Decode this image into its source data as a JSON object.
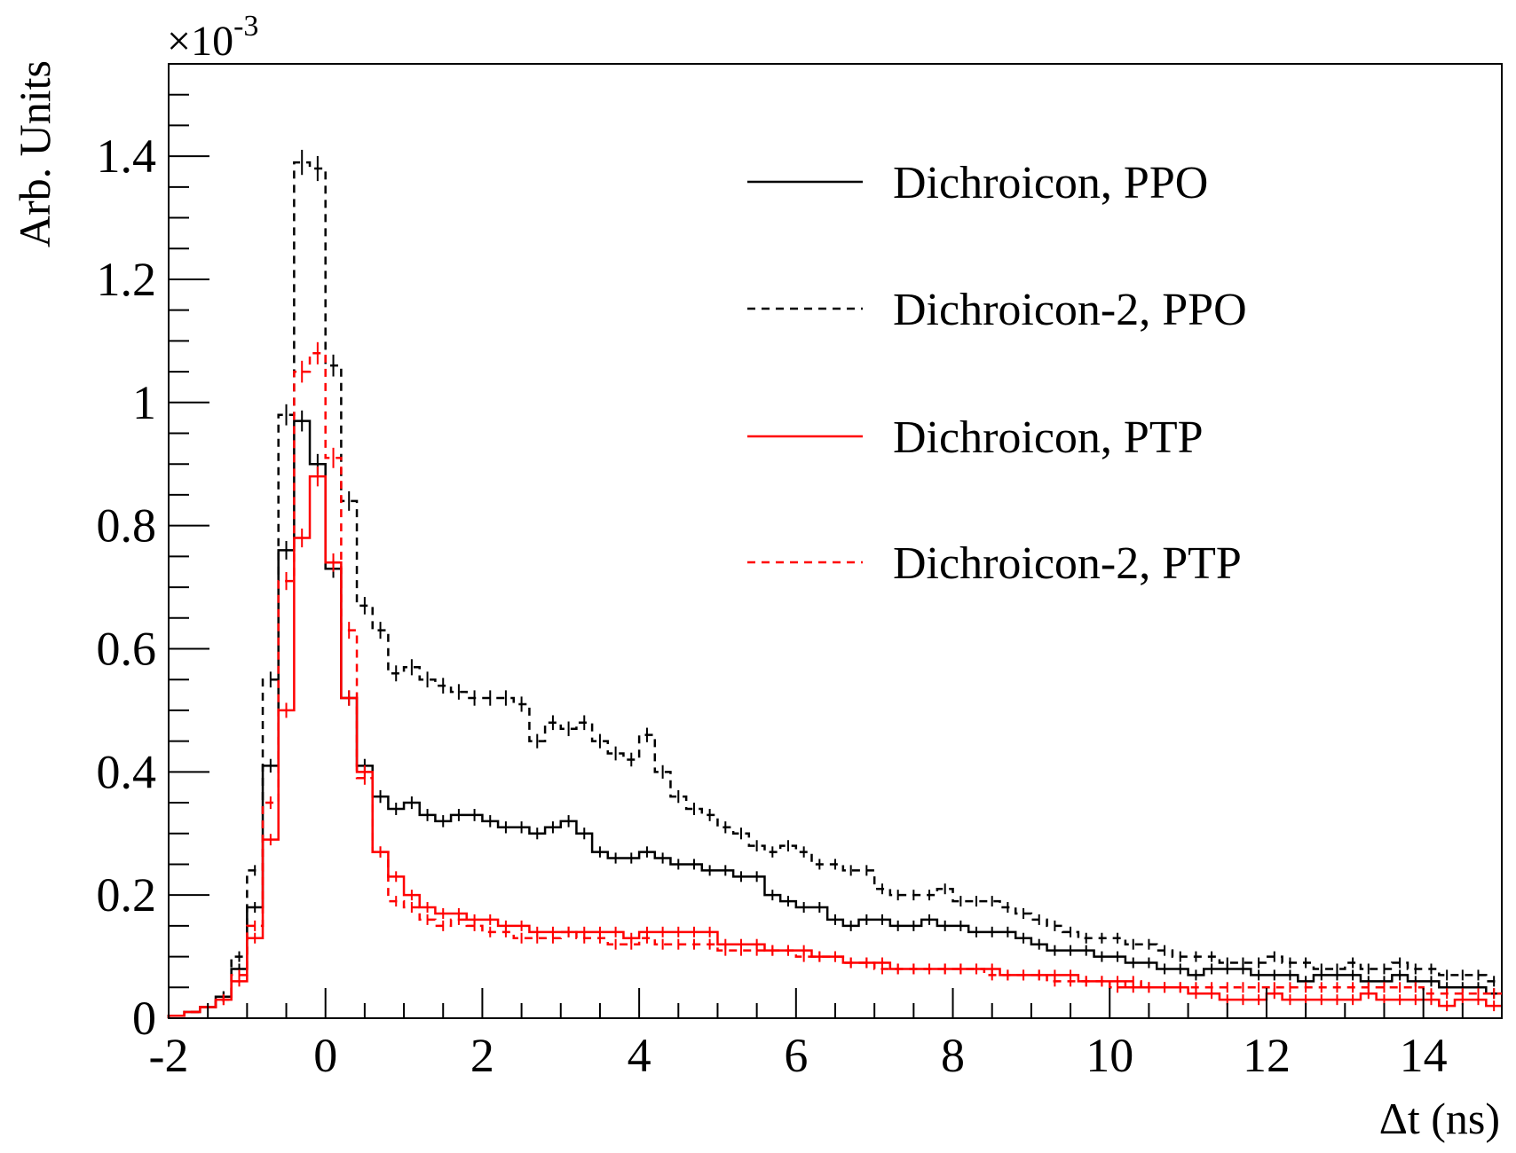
{
  "chart_data": {
    "type": "histogram",
    "title": "",
    "xlabel": "Δt (ns)",
    "ylabel": "Arb. Units",
    "y_multiplier": "×10",
    "y_multiplier_exp": "-3",
    "xlim": [
      -2,
      15
    ],
    "ylim": [
      0,
      1.55
    ],
    "xticks": [
      -2,
      0,
      2,
      4,
      6,
      8,
      10,
      12,
      14
    ],
    "yticks": [
      0,
      0.2,
      0.4,
      0.6,
      0.8,
      1,
      1.2,
      1.4
    ],
    "ytick_labels": [
      "0",
      "0.2",
      "0.4",
      "0.6",
      "0.8",
      "1",
      "1.2",
      "1.4"
    ],
    "xtick_labels": [
      "-2",
      "0",
      "2",
      "4",
      "6",
      "8",
      "10",
      "12",
      "14"
    ],
    "legend_position": "top-right",
    "grid": false,
    "bin_width": 0.2,
    "bin_start": -2,
    "series": [
      {
        "name": "Dichroicon, PPO",
        "color": "#000000",
        "style": "solid",
        "values": [
          0.004,
          0.01,
          0.018,
          0.035,
          0.08,
          0.18,
          0.41,
          0.76,
          0.97,
          0.9,
          0.73,
          0.52,
          0.41,
          0.36,
          0.34,
          0.35,
          0.33,
          0.32,
          0.33,
          0.33,
          0.32,
          0.31,
          0.31,
          0.3,
          0.31,
          0.32,
          0.3,
          0.27,
          0.26,
          0.26,
          0.27,
          0.26,
          0.25,
          0.25,
          0.24,
          0.24,
          0.23,
          0.23,
          0.2,
          0.19,
          0.18,
          0.18,
          0.16,
          0.15,
          0.16,
          0.16,
          0.15,
          0.15,
          0.16,
          0.15,
          0.15,
          0.14,
          0.14,
          0.14,
          0.13,
          0.12,
          0.11,
          0.11,
          0.11,
          0.1,
          0.1,
          0.09,
          0.09,
          0.08,
          0.08,
          0.07,
          0.08,
          0.08,
          0.08,
          0.07,
          0.07,
          0.07,
          0.06,
          0.07,
          0.07,
          0.07,
          0.06,
          0.06,
          0.07,
          0.06,
          0.06,
          0.05,
          0.05,
          0.05,
          0.04
        ]
      },
      {
        "name": "Dichroicon-2, PPO",
        "color": "#000000",
        "style": "dashed",
        "values": [
          0.004,
          0.01,
          0.018,
          0.035,
          0.1,
          0.24,
          0.55,
          0.98,
          1.39,
          1.38,
          1.06,
          0.84,
          0.67,
          0.63,
          0.56,
          0.57,
          0.55,
          0.54,
          0.53,
          0.52,
          0.52,
          0.52,
          0.51,
          0.45,
          0.48,
          0.47,
          0.48,
          0.45,
          0.43,
          0.42,
          0.46,
          0.4,
          0.36,
          0.34,
          0.33,
          0.31,
          0.3,
          0.28,
          0.27,
          0.28,
          0.27,
          0.25,
          0.25,
          0.24,
          0.24,
          0.21,
          0.2,
          0.2,
          0.2,
          0.21,
          0.19,
          0.19,
          0.19,
          0.18,
          0.17,
          0.16,
          0.15,
          0.14,
          0.13,
          0.13,
          0.13,
          0.12,
          0.12,
          0.11,
          0.1,
          0.1,
          0.1,
          0.09,
          0.09,
          0.09,
          0.1,
          0.09,
          0.09,
          0.08,
          0.08,
          0.09,
          0.08,
          0.08,
          0.09,
          0.08,
          0.08,
          0.07,
          0.07,
          0.07,
          0.06
        ]
      },
      {
        "name": "Dichroicon, PTP",
        "color": "#ff0000",
        "style": "solid",
        "values": [
          0.004,
          0.01,
          0.018,
          0.03,
          0.06,
          0.13,
          0.29,
          0.5,
          0.78,
          0.88,
          0.74,
          0.52,
          0.4,
          0.27,
          0.23,
          0.2,
          0.18,
          0.17,
          0.17,
          0.16,
          0.16,
          0.15,
          0.15,
          0.14,
          0.14,
          0.14,
          0.14,
          0.14,
          0.14,
          0.13,
          0.14,
          0.14,
          0.14,
          0.14,
          0.14,
          0.12,
          0.12,
          0.12,
          0.11,
          0.11,
          0.11,
          0.1,
          0.1,
          0.09,
          0.09,
          0.09,
          0.08,
          0.08,
          0.08,
          0.08,
          0.08,
          0.08,
          0.08,
          0.07,
          0.07,
          0.07,
          0.07,
          0.07,
          0.06,
          0.06,
          0.06,
          0.05,
          0.05,
          0.05,
          0.05,
          0.04,
          0.04,
          0.03,
          0.03,
          0.03,
          0.04,
          0.03,
          0.03,
          0.03,
          0.03,
          0.03,
          0.04,
          0.03,
          0.03,
          0.03,
          0.03,
          0.02,
          0.03,
          0.03,
          0.02
        ]
      },
      {
        "name": "Dichroicon-2, PTP",
        "color": "#ff0000",
        "style": "dashed",
        "values": [
          0.004,
          0.01,
          0.018,
          0.03,
          0.07,
          0.15,
          0.35,
          0.71,
          1.05,
          1.08,
          0.91,
          0.63,
          0.39,
          0.27,
          0.19,
          0.18,
          0.16,
          0.15,
          0.16,
          0.15,
          0.14,
          0.14,
          0.13,
          0.13,
          0.13,
          0.14,
          0.13,
          0.13,
          0.12,
          0.12,
          0.13,
          0.12,
          0.12,
          0.12,
          0.12,
          0.11,
          0.11,
          0.11,
          0.11,
          0.11,
          0.1,
          0.1,
          0.1,
          0.09,
          0.09,
          0.08,
          0.08,
          0.08,
          0.08,
          0.08,
          0.08,
          0.08,
          0.07,
          0.07,
          0.07,
          0.07,
          0.06,
          0.06,
          0.06,
          0.06,
          0.05,
          0.06,
          0.05,
          0.05,
          0.05,
          0.05,
          0.05,
          0.05,
          0.05,
          0.05,
          0.05,
          0.05,
          0.05,
          0.05,
          0.05,
          0.05,
          0.05,
          0.05,
          0.05,
          0.05,
          0.04,
          0.04,
          0.04,
          0.04,
          0.04
        ]
      }
    ]
  }
}
